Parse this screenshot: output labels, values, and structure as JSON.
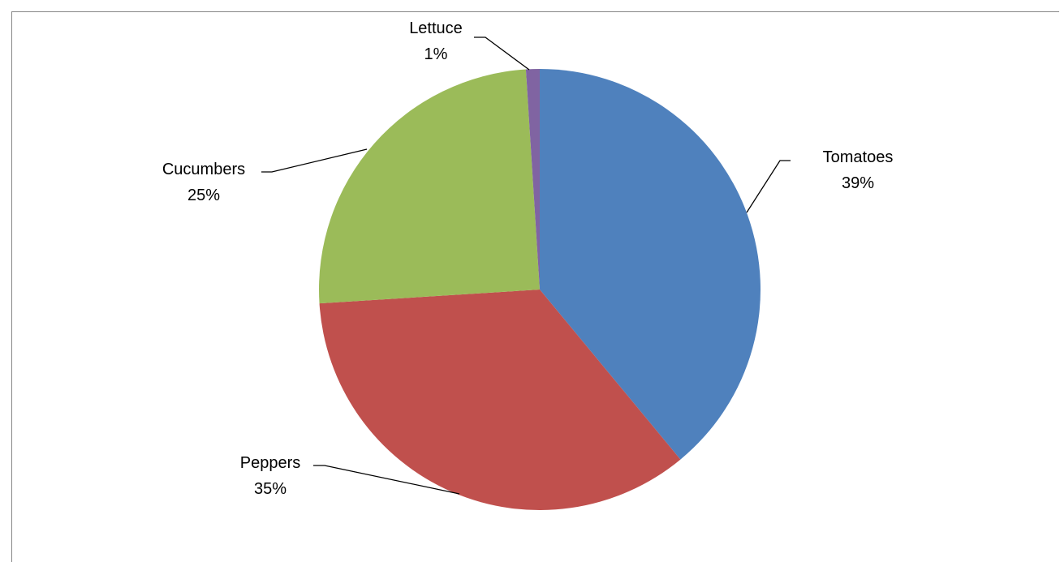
{
  "chart_data": {
    "type": "pie",
    "title": "",
    "slices": [
      {
        "label": "Tomatoes",
        "value": 39,
        "display": "39%",
        "color": "#4F81BD"
      },
      {
        "label": "Peppers",
        "value": 35,
        "display": "35%",
        "color": "#C0504D"
      },
      {
        "label": "Cucumbers",
        "value": 25,
        "display": "25%",
        "color": "#9BBB59"
      },
      {
        "label": "Lettuce",
        "value": 1,
        "display": "1%",
        "color": "#8064A2"
      }
    ],
    "start_angle": "12 o'clock",
    "direction": "clockwise",
    "legend": "none",
    "data_labels": "category name and percentage with leader lines"
  }
}
